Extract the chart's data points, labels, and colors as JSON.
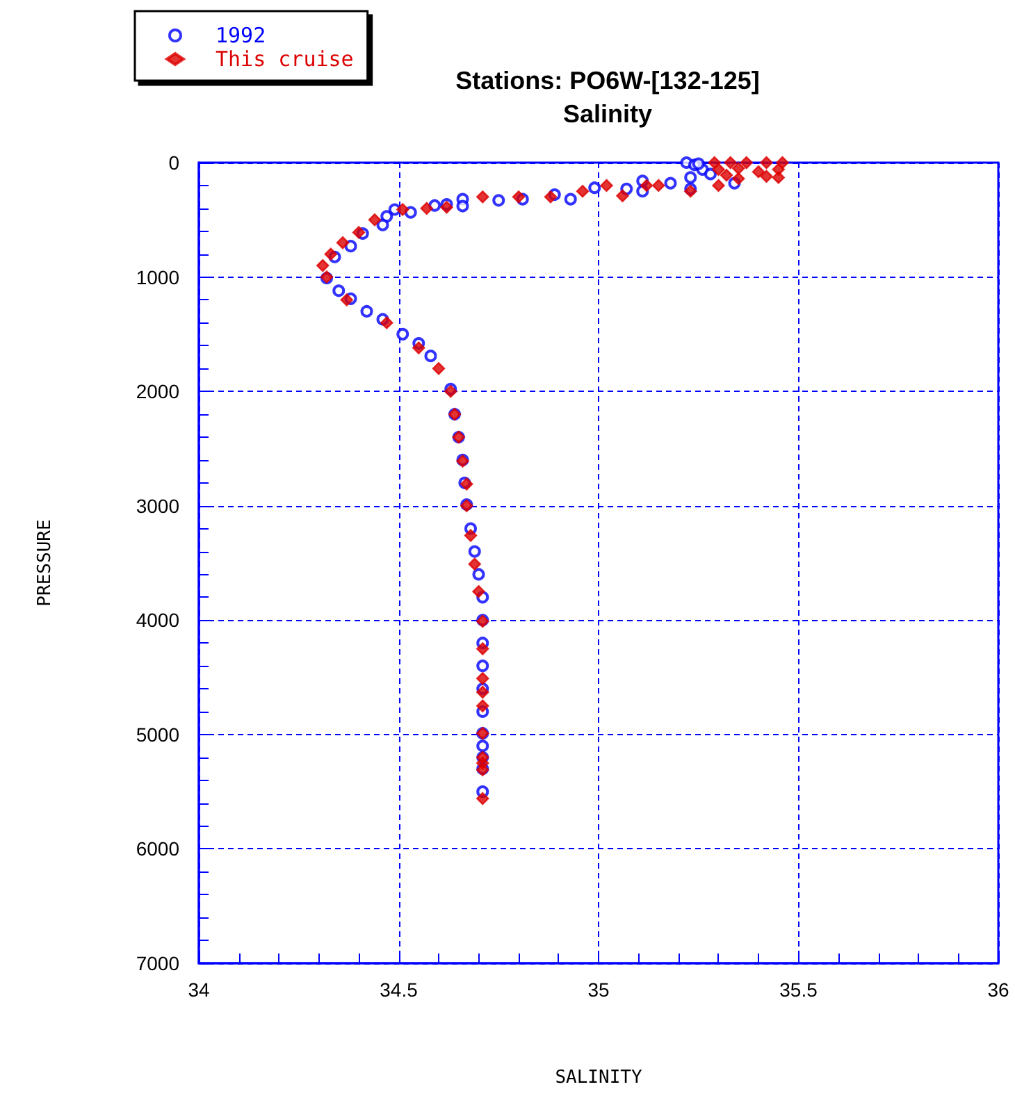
{
  "chart_data": {
    "type": "scatter",
    "title": "Stations: PO6W-[132-125]",
    "subtitle": "Salinity",
    "xlabel": "SALINITY",
    "ylabel": "PRESSURE",
    "xlim": [
      34,
      36
    ],
    "ylim": [
      7000,
      0
    ],
    "xticks": [
      34,
      {
        "value": 34.1,
        "label": null
      },
      {
        "value": 34.2,
        "label": null
      },
      {
        "value": 34.3,
        "label": null
      },
      {
        "value": 34.4,
        "label": null
      },
      34.5,
      {
        "value": 34.6,
        "label": null
      },
      {
        "value": 34.7,
        "label": null
      },
      {
        "value": 34.8,
        "label": null
      },
      {
        "value": 34.9,
        "label": null
      },
      35,
      {
        "value": 35.1,
        "label": null
      },
      {
        "value": 35.2,
        "label": null
      },
      {
        "value": 35.3,
        "label": null
      },
      {
        "value": 35.4,
        "label": null
      },
      35.5,
      {
        "value": 35.6,
        "label": null
      },
      {
        "value": 35.7,
        "label": null
      },
      {
        "value": 35.8,
        "label": null
      },
      {
        "value": 35.9,
        "label": null
      },
      36
    ],
    "yticks": [
      0,
      {
        "value": 200,
        "label": null
      },
      {
        "value": 400,
        "label": null
      },
      {
        "value": 600,
        "label": null
      },
      {
        "value": 800,
        "label": null
      },
      1000,
      {
        "value": 1200,
        "label": null
      },
      {
        "value": 1400,
        "label": null
      },
      {
        "value": 1600,
        "label": null
      },
      {
        "value": 1800,
        "label": null
      },
      2000,
      {
        "value": 2200,
        "label": null
      },
      {
        "value": 2400,
        "label": null
      },
      {
        "value": 2600,
        "label": null
      },
      {
        "value": 2800,
        "label": null
      },
      3000,
      {
        "value": 3200,
        "label": null
      },
      {
        "value": 3400,
        "label": null
      },
      {
        "value": 3600,
        "label": null
      },
      {
        "value": 3800,
        "label": null
      },
      4000,
      {
        "value": 4200,
        "label": null
      },
      {
        "value": 4400,
        "label": null
      },
      {
        "value": 4600,
        "label": null
      },
      {
        "value": 4800,
        "label": null
      },
      5000,
      {
        "value": 5200,
        "label": null
      },
      {
        "value": 5400,
        "label": null
      },
      {
        "value": 5600,
        "label": null
      },
      {
        "value": 5800,
        "label": null
      },
      6000,
      {
        "value": 6200,
        "label": null
      },
      {
        "value": 6400,
        "label": null
      },
      {
        "value": 6600,
        "label": null
      },
      {
        "value": 6800,
        "label": null
      },
      7000
    ],
    "grid": true,
    "legend": "top left",
    "series": [
      {
        "name": "1992",
        "color": "#0000ff",
        "marker": "circle",
        "x": [
          35.22,
          35.24,
          35.26,
          35.28,
          35.23,
          35.25,
          35.34,
          35.23,
          35.18,
          35.11,
          35.11,
          35.07,
          34.99,
          34.93,
          34.89,
          34.81,
          34.75,
          34.66,
          34.66,
          34.62,
          34.59,
          34.53,
          34.49,
          34.47,
          34.46,
          34.41,
          34.38,
          34.34,
          34.32,
          34.35,
          34.38,
          34.42,
          34.46,
          34.51,
          34.55,
          34.58,
          34.63,
          34.64,
          34.65,
          34.66,
          34.665,
          34.67,
          34.68,
          34.69,
          34.7,
          34.71,
          34.71,
          34.71,
          34.71,
          34.71,
          34.71,
          34.71,
          34.71,
          34.71,
          34.71,
          34.71
        ],
        "values": [
          0,
          20,
          60,
          100,
          130,
          10,
          180,
          230,
          180,
          160,
          250,
          230,
          220,
          320,
          280,
          320,
          330,
          320,
          380,
          365,
          375,
          435,
          410,
          470,
          545,
          620,
          730,
          825,
          1010,
          1120,
          1190,
          1300,
          1370,
          1500,
          1580,
          1690,
          1980,
          2200,
          2400,
          2600,
          2800,
          2990,
          3200,
          3400,
          3600,
          3800,
          4000,
          4200,
          4400,
          4600,
          4800,
          4990,
          5100,
          5200,
          5300,
          5500
        ]
      },
      {
        "name": "This cruise",
        "color": "#dd0000",
        "marker": "diamond",
        "x": [
          35.29,
          35.33,
          35.37,
          35.42,
          35.46,
          35.3,
          35.35,
          35.4,
          35.45,
          35.45,
          35.42,
          35.32,
          35.35,
          35.3,
          35.23,
          35.15,
          35.12,
          35.06,
          35.02,
          34.96,
          34.88,
          34.8,
          34.71,
          34.62,
          34.57,
          34.51,
          34.44,
          34.4,
          34.36,
          34.33,
          34.31,
          34.32,
          34.37,
          34.47,
          34.55,
          34.6,
          34.63,
          34.64,
          34.65,
          34.66,
          34.67,
          34.67,
          34.68,
          34.69,
          34.7,
          34.71,
          34.71,
          34.71,
          34.71,
          34.71,
          34.71,
          34.71,
          34.71,
          34.71,
          34.71
        ],
        "values": [
          0,
          0,
          0,
          0,
          0,
          60,
          50,
          80,
          60,
          130,
          120,
          110,
          140,
          200,
          250,
          200,
          200,
          290,
          200,
          250,
          300,
          300,
          300,
          390,
          400,
          410,
          500,
          610,
          700,
          800,
          900,
          1000,
          1200,
          1400,
          1620,
          1800,
          2000,
          2200,
          2400,
          2610,
          2810,
          3000,
          3260,
          3510,
          3750,
          4010,
          4250,
          4510,
          4630,
          4750,
          4990,
          5200,
          5250,
          5310,
          5560
        ]
      }
    ]
  }
}
